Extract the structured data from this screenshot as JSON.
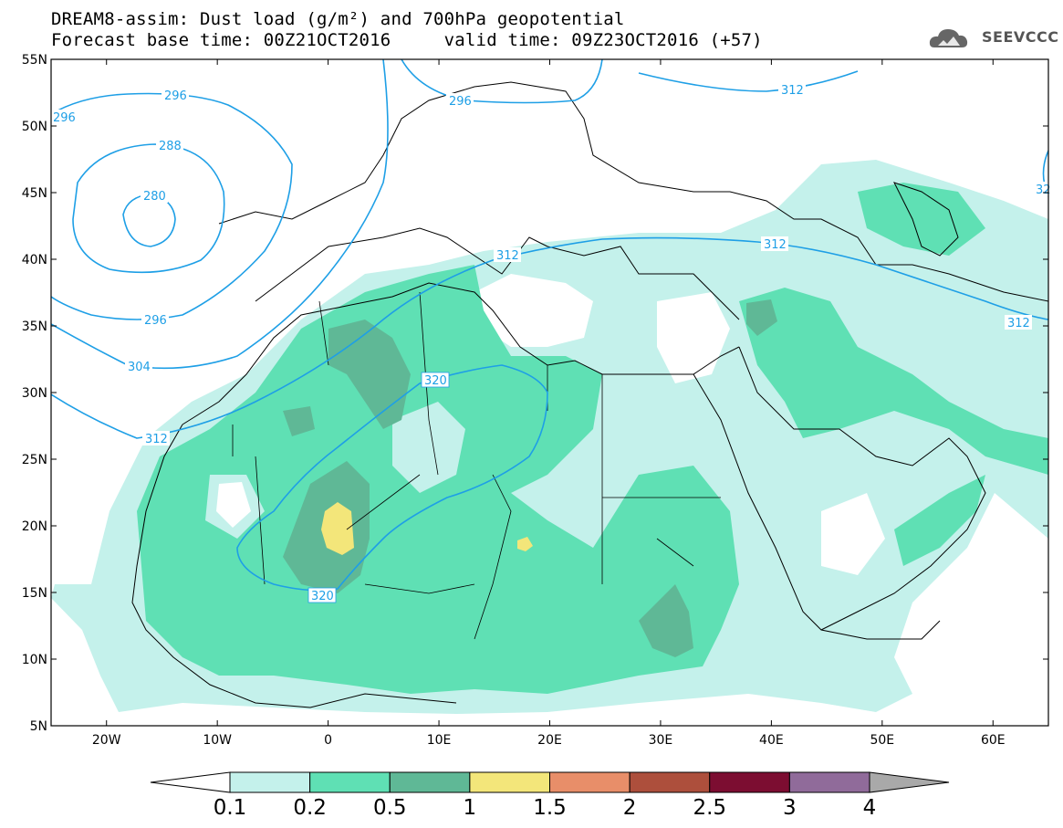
{
  "header": {
    "title_line1": "DREAM8-assim: Dust load (g/m²) and 700hPa geopotential",
    "title_line2": "Forecast base time: 00Z21OCT2016     valid time: 09Z23OCT2016 (+57)"
  },
  "logo": {
    "text": "SEEVCCC",
    "icon": "cloud-icon"
  },
  "map": {
    "lat_ticks": [
      "55N",
      "50N",
      "45N",
      "40N",
      "35N",
      "30N",
      "25N",
      "20N",
      "15N",
      "10N",
      "5N"
    ],
    "lon_ticks": [
      "20W",
      "10W",
      "0",
      "10E",
      "20E",
      "30E",
      "40E",
      "50E",
      "60E"
    ],
    "lon_range": [
      -25,
      65
    ],
    "lat_range": [
      5,
      55
    ],
    "contours": [
      {
        "label": "280"
      },
      {
        "label": "288"
      },
      {
        "label": "296"
      },
      {
        "label": "296"
      },
      {
        "label": "296"
      },
      {
        "label": "296"
      },
      {
        "label": "304"
      },
      {
        "label": "312"
      },
      {
        "label": "312"
      },
      {
        "label": "312"
      },
      {
        "label": "312"
      },
      {
        "label": "312"
      },
      {
        "label": "320"
      },
      {
        "label": "320"
      },
      {
        "label": "32"
      }
    ],
    "contour_color": "#1e9fe6"
  },
  "colorbar": {
    "labels": [
      "0.1",
      "0.2",
      "0.5",
      "1",
      "1.5",
      "2",
      "2.5",
      "3",
      "4"
    ],
    "colors": [
      "#c4f1eb",
      "#5fe0b4",
      "#5fb896",
      "#f3e67a",
      "#e88e69",
      "#ad4f3c",
      "#7c0d31",
      "#906b9a"
    ],
    "extend_high_color": "#a9a9a9"
  },
  "palette": {
    "level_0_1": "#c4f1eb",
    "level_0_2": "#5fe0b4",
    "level_0_5": "#5fb896",
    "level_1": "#f3e67a"
  }
}
